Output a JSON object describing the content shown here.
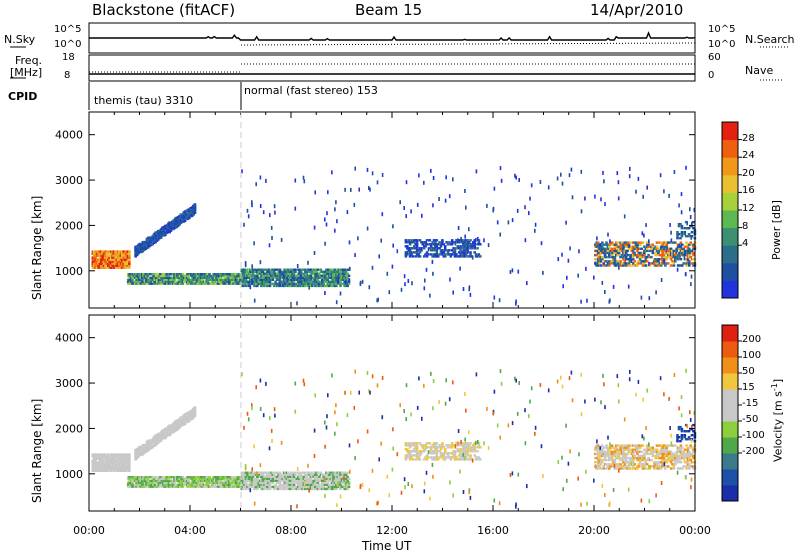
{
  "header": {
    "title": "Blackstone (fitACF)",
    "beam": "Beam 15",
    "date": "14/Apr/2010"
  },
  "strip": {
    "nsky_label": "N.Sky",
    "nsky_ticks": [
      "10^5",
      "10^0"
    ],
    "nsearch_label": "N.Search",
    "nsearch_ticks": [
      "10^5",
      "10^0"
    ],
    "freq_label": "Freq.",
    "freq_unit": "[MHz]",
    "freq_ticks": [
      "18",
      "8"
    ],
    "nave_label": "Nave",
    "nave_ticks": [
      "60",
      "0"
    ],
    "cpid_label": "CPID",
    "cpid_segments": [
      {
        "label": "themis (tau) 3310",
        "start_h": 0,
        "end_h": 6
      },
      {
        "label": "normal (fast stereo) 153",
        "start_h": 6,
        "end_h": 24
      }
    ]
  },
  "chart_data": [
    {
      "type": "heatmap",
      "name": "power-panel",
      "ylabel": "Slant Range [km]",
      "yticks": [
        1000,
        2000,
        3000,
        4000
      ],
      "ylim": [
        180,
        4500
      ],
      "xlim": [
        0,
        24
      ],
      "colorbar": {
        "label": "Power [dB]",
        "ticks": [
          "28",
          "24",
          "20",
          "16",
          "12",
          "8",
          "4"
        ],
        "colors": [
          "#2233dd",
          "#1e4fa0",
          "#2a6e8a",
          "#3a9070",
          "#5cb850",
          "#a7d03a",
          "#e8c030",
          "#f09818",
          "#ee6010",
          "#e42010"
        ]
      }
    },
    {
      "type": "heatmap",
      "name": "velocity-panel",
      "ylabel": "Slant Range [km]",
      "yticks": [
        1000,
        2000,
        3000,
        4000
      ],
      "ylim": [
        180,
        4500
      ],
      "xlim": [
        0,
        24
      ],
      "colorbar": {
        "label": "Velocity [m s",
        "label_sup": "-1",
        "label_end": "]",
        "ticks": [
          "200",
          "100",
          "50",
          "15",
          "-15",
          "-50",
          "-100",
          "-200"
        ],
        "colors": [
          "#1a2ea8",
          "#1e50a6",
          "#3a7a8a",
          "#4fa84a",
          "#8ccf3e",
          "#c8c8c8",
          "#c8c8c8",
          "#f0c840",
          "#f09018",
          "#ec5a10",
          "#e02010"
        ]
      }
    }
  ],
  "xaxis": {
    "label": "Time UT",
    "ticks": [
      "00:00",
      "04:00",
      "08:00",
      "12:00",
      "16:00",
      "20:00",
      "00:00"
    ]
  }
}
